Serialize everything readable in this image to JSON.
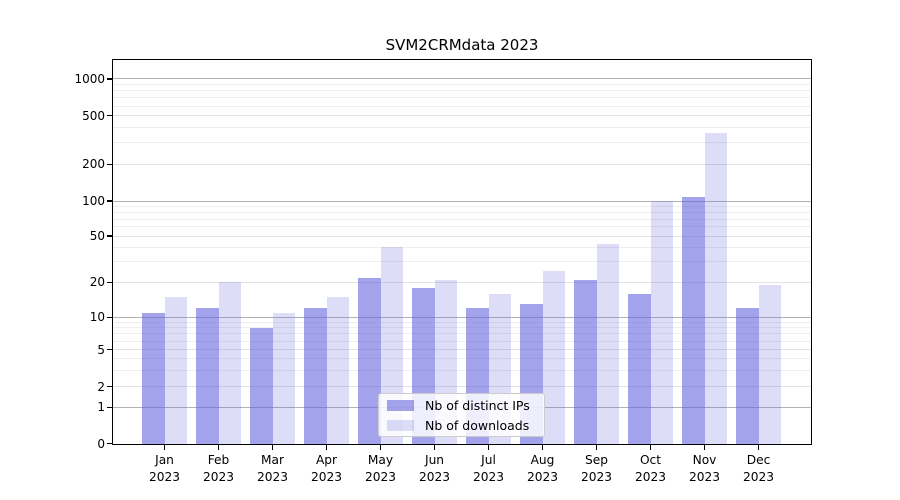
{
  "figure": {
    "background": "#ffffff"
  },
  "chart_data": {
    "type": "bar",
    "title": "SVM2CRMdata 2023",
    "categories": [
      "Jan 2023",
      "Feb 2023",
      "Mar 2023",
      "Apr 2023",
      "May 2023",
      "Jun 2023",
      "Jul 2023",
      "Aug 2023",
      "Sep 2023",
      "Oct 2023",
      "Nov 2023",
      "Dec 2023"
    ],
    "series": [
      {
        "name": "Nb of distinct IPs",
        "color": "#6666e0",
        "opacity": 0.6,
        "values": [
          11,
          12,
          8,
          12,
          22,
          18,
          12,
          13,
          21,
          16,
          108,
          12
        ]
      },
      {
        "name": "Nb of downloads",
        "color": "#6666e0",
        "opacity": 0.22,
        "values": [
          15,
          20,
          11,
          15,
          40,
          21,
          16,
          25,
          43,
          100,
          360,
          19
        ]
      }
    ],
    "xlabel": "",
    "ylabel": "",
    "yscale": "symlog",
    "yticks": [
      0,
      1,
      2,
      5,
      10,
      20,
      50,
      100,
      200,
      500,
      1000
    ],
    "ylim": [
      0,
      1430
    ],
    "grid": true,
    "legend_position": "lower center"
  }
}
